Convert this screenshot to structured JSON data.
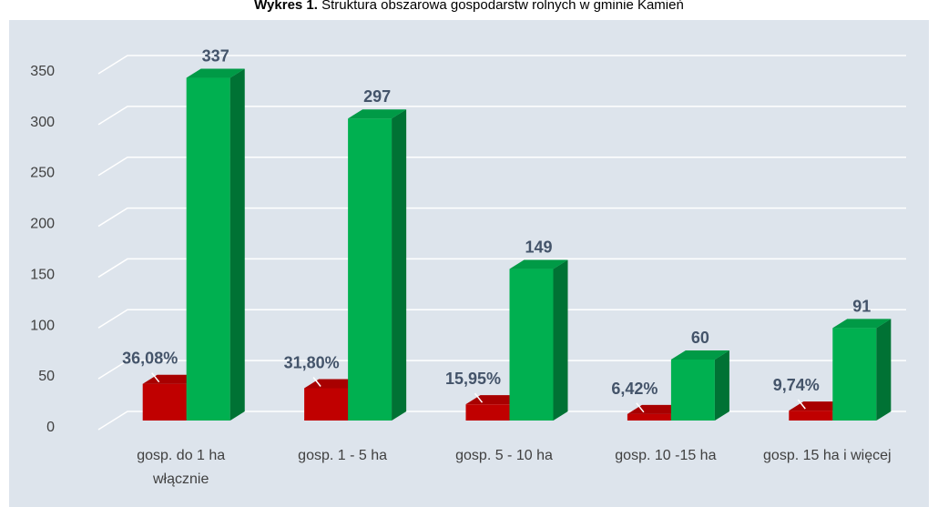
{
  "chart_data": {
    "type": "bar3d",
    "title": [
      "Wykres 1.",
      "Struktura obszarowa gospodarstw rolnych w gminie Kamień"
    ],
    "categories": [
      "gosp. do 1 ha włącznie",
      "gosp. 1 - 5 ha",
      "gosp. 5 - 10 ha",
      "gosp. 10 -15 ha",
      "gosp. 15 ha i więcej"
    ],
    "series": [
      {
        "color": "#c00000",
        "values": [
          36.08,
          31.8,
          15.95,
          6.42,
          9.74
        ],
        "value_labels": [
          "36,08%",
          "31,80%",
          "15,95%",
          "6,42%",
          "9,74%"
        ]
      },
      {
        "color": "#00b050",
        "values": [
          337,
          297,
          149,
          60,
          91
        ]
      }
    ],
    "ylim": [
      0,
      350
    ],
    "yticks": [
      0,
      50,
      100,
      150,
      200,
      250,
      300,
      350
    ],
    "grid": true
  }
}
